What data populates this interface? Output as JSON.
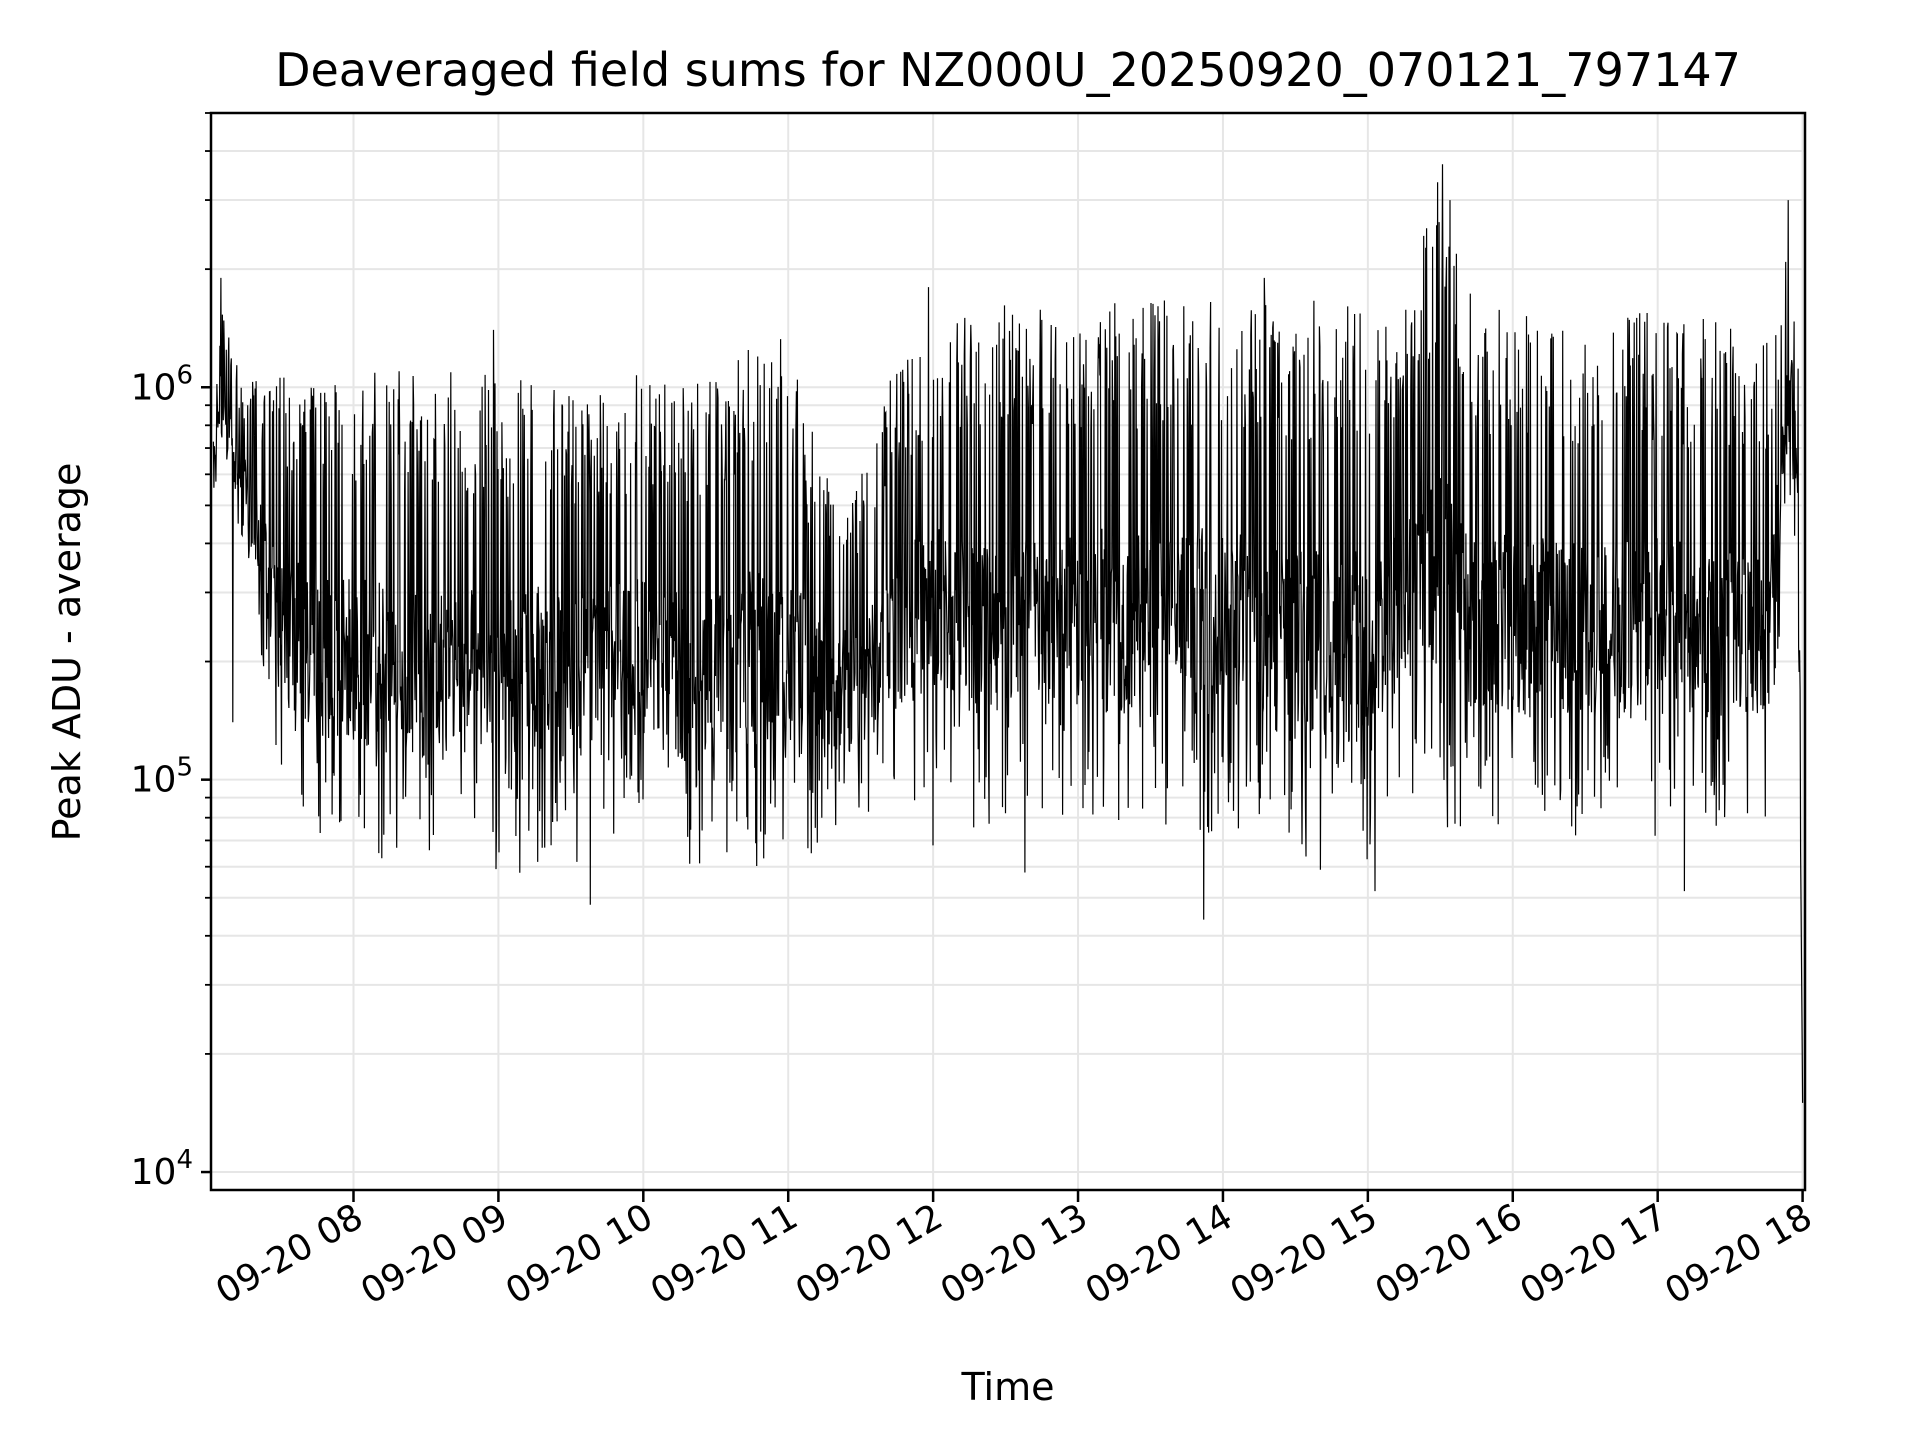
{
  "chart_data": {
    "type": "line",
    "title": "Deaveraged field sums for NZ000U_20250920_070121_797147",
    "xlabel": "Time",
    "ylabel": "Peak ADU - average",
    "x_ticks": [
      "09-20 08",
      "09-20 09",
      "09-20 10",
      "09-20 11",
      "09-20 12",
      "09-20 13",
      "09-20 14",
      "09-20 15",
      "09-20 16",
      "09-20 17",
      "09-20 18"
    ],
    "xlim": [
      "2025-09-20 07:01",
      "2025-09-20 18:01"
    ],
    "yscale": "log",
    "ylim": [
      9000,
      5000000
    ],
    "y_ticks": [
      {
        "value": 10000,
        "base": "10",
        "exp": "4"
      },
      {
        "value": 100000,
        "base": "10",
        "exp": "5"
      },
      {
        "value": 1000000,
        "base": "10",
        "exp": "6"
      }
    ],
    "grid": true,
    "series": [
      {
        "color": "#000000",
        "envelope": {
          "x": [
            "07:02",
            "07:05",
            "07:08",
            "07:15",
            "07:20",
            "07:30",
            "07:45",
            "08:00",
            "08:15",
            "08:30",
            "08:45",
            "09:00",
            "09:15",
            "09:30",
            "09:45",
            "10:00",
            "10:15",
            "10:30",
            "10:45",
            "11:00",
            "11:15",
            "11:30",
            "11:45",
            "12:00",
            "12:15",
            "12:30",
            "12:45",
            "13:00",
            "13:15",
            "13:30",
            "13:45",
            "14:00",
            "14:15",
            "14:30",
            "14:45",
            "15:00",
            "15:15",
            "15:30",
            "15:45",
            "16:00",
            "16:15",
            "16:30",
            "16:45",
            "17:00",
            "17:15",
            "17:30",
            "17:45",
            "17:50",
            "17:55",
            "17:58",
            "18:00"
          ],
          "low": [
            550000,
            600000,
            500000,
            400000,
            250000,
            90000,
            70000,
            65000,
            60000,
            55000,
            60000,
            50000,
            60000,
            60000,
            70000,
            65000,
            60000,
            60000,
            60000,
            55000,
            70000,
            75000,
            85000,
            90000,
            75000,
            75000,
            75000,
            75000,
            75000,
            72000,
            75000,
            72000,
            75000,
            55000,
            60000,
            60000,
            90000,
            75000,
            75000,
            72000,
            72000,
            72000,
            70000,
            72000,
            70000,
            68000,
            80000,
            200000,
            500000,
            250000,
            15000
          ],
          "high": [
            900000,
            1700000,
            1400000,
            1000000,
            1100000,
            1150000,
            1100000,
            1150000,
            1100000,
            1150000,
            1100000,
            1100000,
            1100000,
            950000,
            1000000,
            1100000,
            1000000,
            1050000,
            1300000,
            1350000,
            600000,
            600000,
            1200000,
            1500000,
            1600000,
            1650000,
            1700000,
            1700000,
            1650000,
            1700000,
            1700000,
            1700000,
            1650000,
            1650000,
            1700000,
            1600000,
            1600000,
            3600000,
            1600000,
            1600000,
            1550000,
            1550000,
            1550000,
            1550000,
            1500000,
            1500000,
            1300000,
            1600000,
            2800000,
            1800000,
            15000
          ]
        },
        "spikes": [
          {
            "x": "07:05",
            "y": 1900000
          },
          {
            "x": "07:10",
            "y": 140000
          },
          {
            "x": "08:58",
            "y": 1400000
          },
          {
            "x": "09:38",
            "y": 48000
          },
          {
            "x": "11:58",
            "y": 1800000
          },
          {
            "x": "12:00",
            "y": 68000
          },
          {
            "x": "12:38",
            "y": 58000
          },
          {
            "x": "13:52",
            "y": 44000
          },
          {
            "x": "14:17",
            "y": 1900000
          },
          {
            "x": "15:03",
            "y": 52000
          },
          {
            "x": "15:31",
            "y": 3700000
          },
          {
            "x": "15:34",
            "y": 3000000
          },
          {
            "x": "17:11",
            "y": 52000
          },
          {
            "x": "17:54",
            "y": 3000000
          },
          {
            "x": "18:00",
            "y": 15000
          }
        ]
      }
    ]
  }
}
